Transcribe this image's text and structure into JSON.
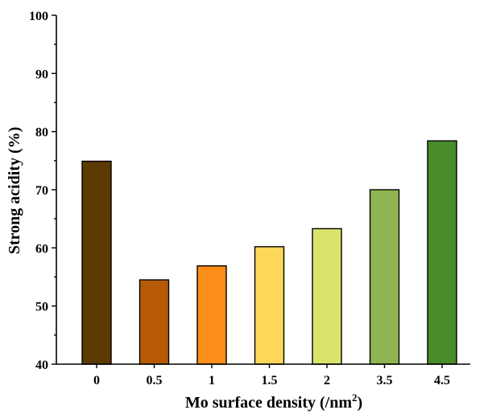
{
  "chart_data": {
    "type": "bar",
    "title": "",
    "xlabel": "Mo surface density (/nm",
    "xlabel_sup": "2",
    "xlabel_end": ")",
    "ylabel": "Strong acidity (%)",
    "categories": [
      "0",
      "0.5",
      "1",
      "1.5",
      "2",
      "3.5",
      "4.5"
    ],
    "values": [
      74.9,
      54.5,
      56.9,
      60.2,
      63.3,
      70.0,
      78.4
    ],
    "colors": [
      "#5c3b03",
      "#b65a06",
      "#fb8d19",
      "#fdd65a",
      "#d9e46d",
      "#8db450",
      "#4a8b2a"
    ],
    "ylim": [
      40,
      100
    ],
    "yticks": [
      40,
      50,
      60,
      70,
      80,
      90,
      100
    ],
    "ytick_labels": [
      "40",
      "50",
      "60",
      "70",
      "80",
      "90",
      "100"
    ],
    "grid": false,
    "legend": "none"
  }
}
